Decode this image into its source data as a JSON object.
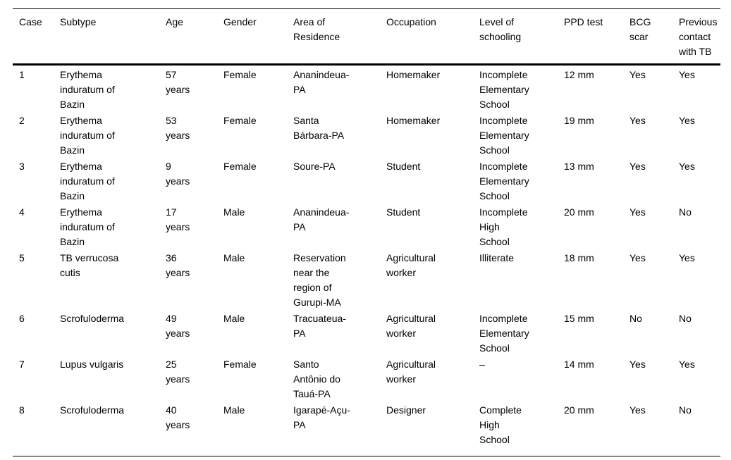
{
  "colors": {
    "background": "#ffffff",
    "text": "#000000",
    "rule": "#000000"
  },
  "table": {
    "columns": [
      "Case",
      "Subtype",
      "Age",
      "Gender",
      "Area of\nResidence",
      "Occupation",
      "Level of\nschooling",
      "PPD test",
      "BCG\nscar",
      "Previous\ncontact\nwith TB"
    ],
    "rows": [
      [
        "1",
        "Erythema\ninduratum of\nBazin",
        "57\nyears",
        "Female",
        "Ananindeua-\nPA",
        "Homemaker",
        "Incomplete\nElementary\nSchool",
        "12 mm",
        "Yes",
        "Yes"
      ],
      [
        "2",
        "Erythema\ninduratum of\nBazin",
        "53\nyears",
        "Female",
        "Santa\nBárbara-PA",
        "Homemaker",
        "Incomplete\nElementary\nSchool",
        "19 mm",
        "Yes",
        "Yes"
      ],
      [
        "3",
        "Erythema\ninduratum of\nBazin",
        "9\nyears",
        "Female",
        "Soure-PA",
        "Student",
        "Incomplete\nElementary\nSchool",
        "13 mm",
        "Yes",
        "Yes"
      ],
      [
        "4",
        "Erythema\ninduratum of\nBazin",
        "17\nyears",
        "Male",
        "Ananindeua-\nPA",
        "Student",
        "Incomplete\nHigh\nSchool",
        "20 mm",
        "Yes",
        "No"
      ],
      [
        "5",
        "TB verrucosa\ncutis",
        "36\nyears",
        "Male",
        "Reservation\nnear the\nregion of\nGurupi-MA",
        "Agricultural\nworker",
        "Illiterate",
        "18 mm",
        "Yes",
        "Yes"
      ],
      [
        "6",
        "Scrofuloderma",
        "49\nyears",
        "Male",
        "Tracuateua-\nPA",
        "Agricultural\nworker",
        "Incomplete\nElementary\nSchool",
        "15 mm",
        "No",
        "No"
      ],
      [
        "7",
        "Lupus vulgaris",
        "25\nyears",
        "Female",
        "Santo\nAntônio do\nTauá-PA",
        "Agricultural\nworker",
        "–",
        "14 mm",
        "Yes",
        "Yes"
      ],
      [
        "8",
        "Scrofuloderma",
        "40\nyears",
        "Male",
        "Igarapé-Açu-\nPA",
        "Designer",
        "Complete\nHigh\nSchool",
        "20 mm",
        "Yes",
        "No"
      ]
    ]
  }
}
